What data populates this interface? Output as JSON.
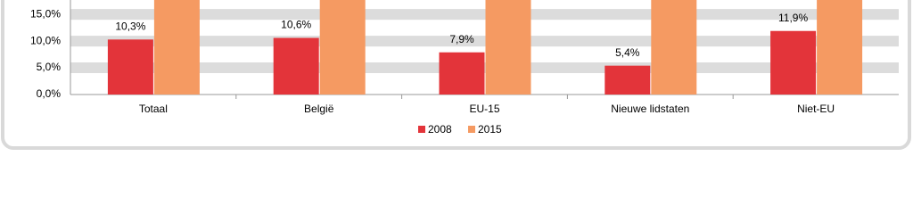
{
  "chart_data": {
    "type": "bar",
    "categories": [
      "Totaal",
      "België",
      "EU-15",
      "Nieuwe lidstaten",
      "Niet-EU"
    ],
    "series": [
      {
        "name": "2008",
        "color": "#e3343a",
        "values": [
          10.3,
          10.6,
          7.9,
          5.4,
          11.9
        ],
        "value_labels": [
          "10,3%",
          "10,6%",
          "7,9%",
          "5,4%",
          "11,9%"
        ]
      },
      {
        "name": "2015",
        "color": "#f59a62",
        "values": [
          18,
          18,
          18,
          18,
          18
        ]
      }
    ],
    "ylim": [
      0,
      17.7
    ],
    "yticks": [
      {
        "value": 0,
        "label": "0,0%"
      },
      {
        "value": 5,
        "label": "5,0%"
      },
      {
        "value": 10,
        "label": "10,0%"
      },
      {
        "value": 15,
        "label": "15,0%"
      }
    ],
    "grid": true,
    "legend": "bottom"
  }
}
